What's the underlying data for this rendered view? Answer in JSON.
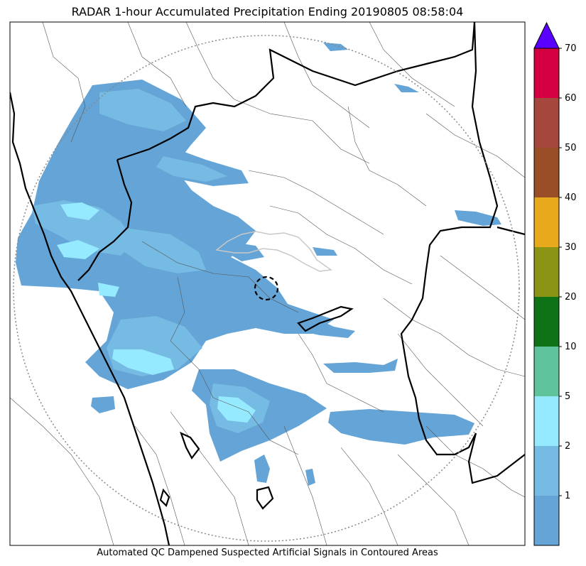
{
  "title": "RADAR 1-hour Accumulated Precipitation Ending 20190805 08:58:04",
  "caption": "Automated QC Dampened Suspected Artificial Signals in Contoured Areas",
  "colorbar": {
    "bins": [
      {
        "label": "",
        "color": "#64a4d6"
      },
      {
        "label": "1",
        "color": "#76bbe3"
      },
      {
        "label": "2",
        "color": "#96eaff"
      },
      {
        "label": "5",
        "color": "#5fc49c"
      },
      {
        "label": "10",
        "color": "#0e7316"
      },
      {
        "label": "20",
        "color": "#8b9415"
      },
      {
        "label": "30",
        "color": "#e8a91c"
      },
      {
        "label": "40",
        "color": "#994e28"
      },
      {
        "label": "50",
        "color": "#a5473d"
      },
      {
        "label": "60",
        "color": "#d40041"
      }
    ],
    "top_label": "70",
    "extend_color": "#5a00ff"
  },
  "colors": {
    "rain_light": "#64a4d6",
    "rain_moderate": "#76bbe3",
    "rain_heavy": "#96eaff",
    "coast": "#000000",
    "range_ring": "#888888",
    "qc_contour": "#c8c8c8"
  }
}
